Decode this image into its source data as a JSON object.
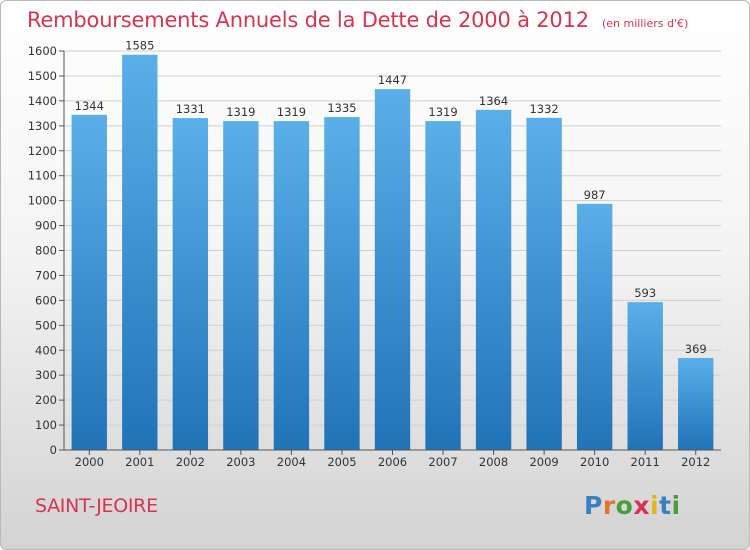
{
  "header": {
    "title": "Remboursements Annuels de la Dette de 2000 à 2012",
    "subtitle": "(en milliers d'€)"
  },
  "footer": {
    "commune": "SAINT-JEOIRE",
    "logo_text": "Proxiti"
  },
  "colors": {
    "title": "#d9334f",
    "bar_top": "#5aafe9",
    "bar_bottom": "#2173b7",
    "grid": "#d0d0d0"
  },
  "chart_data": {
    "type": "bar",
    "title": "Remboursements Annuels de la Dette de 2000 à 2012",
    "subtitle": "(en milliers d'€)",
    "categories": [
      "2000",
      "2001",
      "2002",
      "2003",
      "2004",
      "2005",
      "2006",
      "2007",
      "2008",
      "2009",
      "2010",
      "2011",
      "2012"
    ],
    "values": [
      1344,
      1585,
      1331,
      1319,
      1319,
      1335,
      1447,
      1319,
      1364,
      1332,
      987,
      593,
      369
    ],
    "ylim": [
      0,
      1600
    ],
    "yticks": [
      0,
      100,
      200,
      300,
      400,
      500,
      600,
      700,
      800,
      900,
      1000,
      1100,
      1200,
      1300,
      1400,
      1500,
      1600
    ],
    "grid": true,
    "data_labels": true
  }
}
